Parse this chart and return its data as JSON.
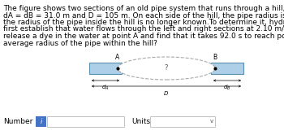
{
  "pipe_color": "#aecfe8",
  "pipe_edge": "#5a8fb0",
  "ellipse_edge": "#aaaaaa",
  "bg_color": "#ffffff",
  "input_box_color": "#4472c4",
  "font_size_text": 6.5,
  "font_size_labels": 5.5,
  "paragraph_lines": [
    "The figure shows two sections of an old pipe system that runs through a hill, with distances",
    "dA = dB = 31.0 m and D = 105 m. On each side of the hill, the pipe radius is 2.30 cm. However,",
    "the radius of the pipe inside the hill is no longer known.To determine it, hydraulic engineers",
    "first establish that water flows through the left and right sections at 2.10 m/s. Then they",
    "release a dye in the water at point A and find that it takes 92.0 s to reach point B. What is the",
    "average radius of the pipe within the hill?"
  ]
}
